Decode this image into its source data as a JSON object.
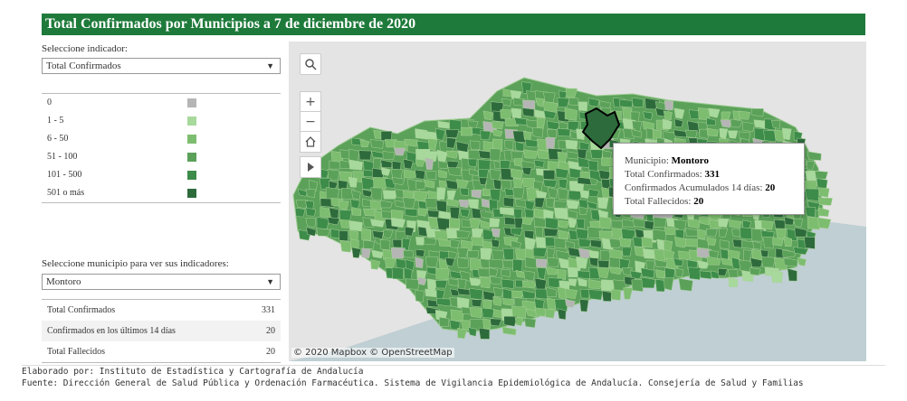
{
  "title": "Total Confirmados por Municipios a 7 de diciembre de 2020",
  "indicator": {
    "label": "Seleccione indicador:",
    "selected": "Total Confirmados"
  },
  "legend": [
    {
      "label": "0",
      "color": "#b5b5b5"
    },
    {
      "label": "1 - 5",
      "color": "#a8d99c"
    },
    {
      "label": "6 - 50",
      "color": "#7dbd6f"
    },
    {
      "label": "51 - 100",
      "color": "#5ba15a"
    },
    {
      "label": "101 - 500",
      "color": "#3d8c4a"
    },
    {
      "label": "501 o más",
      "color": "#2e6b3c"
    }
  ],
  "municipio": {
    "label": "Seleccione municipio para ver sus indicadores:",
    "selected": "Montoro"
  },
  "indicators_table": [
    {
      "name": "Total Confirmados",
      "value": "331"
    },
    {
      "name": "Confirmados en los últimos 14 días",
      "value": "20"
    },
    {
      "name": "Total Fallecidos",
      "value": "20"
    }
  ],
  "tooltip": {
    "municipio_label": "Municipio:",
    "municipio_value": "Montoro",
    "confirmados_label": "Total Confirmados:",
    "confirmados_value": "331",
    "acumulados_label": "Confirmados Acumulados 14 días:",
    "acumulados_value": "20",
    "fallecidos_label": "Total Fallecidos:",
    "fallecidos_value": "20"
  },
  "map_controls": {
    "search": "search-icon",
    "zoom_in": "+",
    "zoom_out": "−",
    "home": "home-icon",
    "play": "play-icon"
  },
  "attribution": "© 2020 Mapbox © OpenStreetMap",
  "footer": {
    "line1": "Elaborado por: Instituto de Estadística y Cartografía de Andalucía",
    "line2": "Fuente: Dirección General de Salud Pública y Ordenación Farmacéutica. Sistema de Vigilancia Epidemiológica de Andalucía. Consejería de Salud y Familias"
  }
}
